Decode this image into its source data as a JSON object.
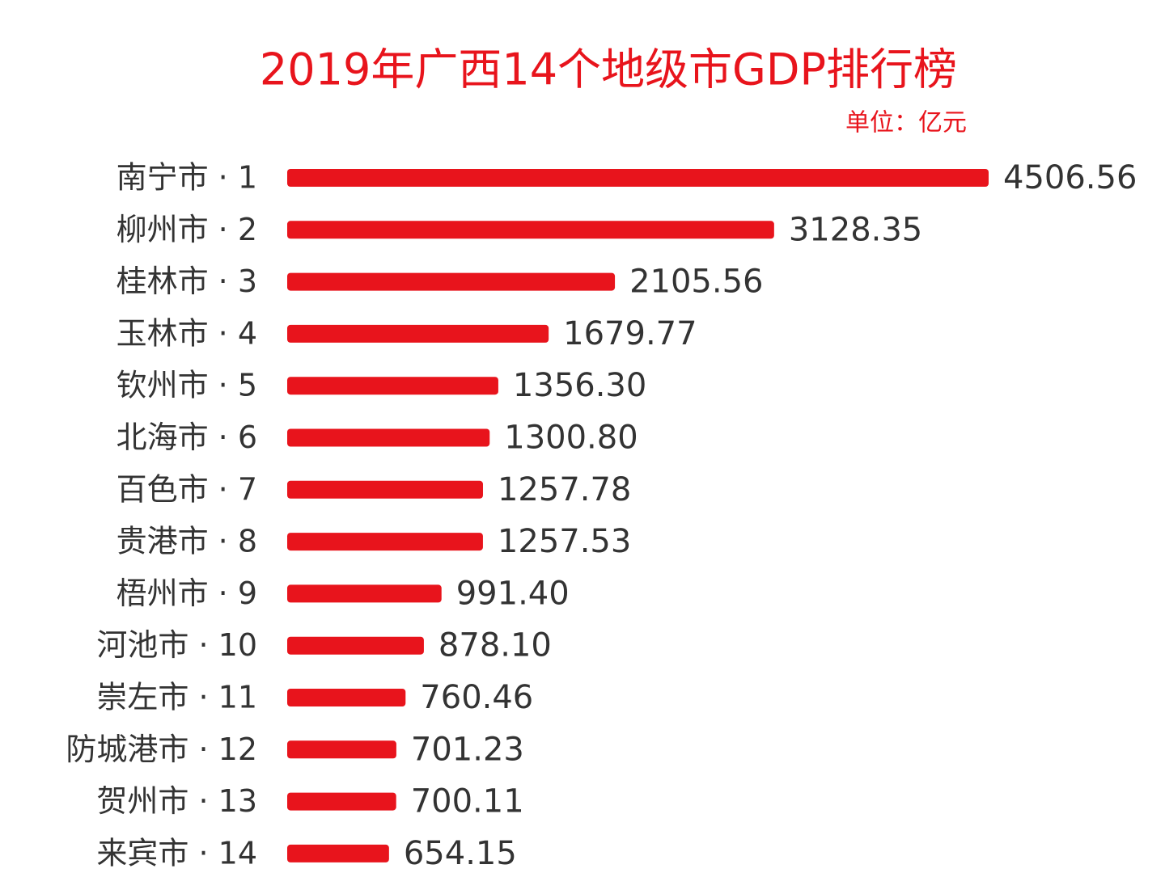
{
  "chart_data": {
    "type": "bar",
    "orientation": "horizontal",
    "title": "2019年广西14个地级市GDP排行榜",
    "subtitle": "单位：亿元",
    "categories": [
      "南宁市 · 1",
      "柳州市 · 2",
      "桂林市 · 3",
      "玉林市 · 4",
      "钦州市 · 5",
      "北海市 · 6",
      "百色市 · 7",
      "贵港市 · 8",
      "梧州市 · 9",
      "河池市 · 10",
      "崇左市 · 11",
      "防城港市 · 12",
      "贺州市 · 13",
      "来宾市 · 14"
    ],
    "values": [
      4506.56,
      3128.35,
      2105.56,
      1679.77,
      1356.3,
      1300.8,
      1257.78,
      1257.53,
      991.4,
      878.1,
      760.46,
      701.23,
      700.11,
      654.15
    ],
    "value_labels": [
      "4506.56",
      "3128.35",
      "2105.56",
      "1679.77",
      "1356.30",
      "1300.80",
      "1257.78",
      "1257.53",
      "991.40",
      "878.10",
      "760.46",
      "701.23",
      "700.11",
      "654.15"
    ],
    "color": "#e8141c"
  }
}
